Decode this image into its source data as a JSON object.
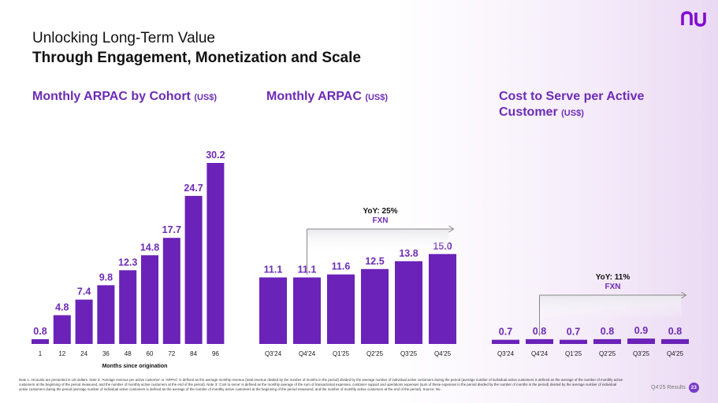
{
  "header": {
    "title_line1": "Unlocking Long-Term Value",
    "title_line2": "Through Engagement, Monetization and Scale"
  },
  "brand": {
    "logo_text": "nu",
    "color": "#820ad1"
  },
  "colors": {
    "bar": "#6a22b8",
    "title": "#6d2bb5",
    "axis_text": "#1b1b1b",
    "arrow": "#888888"
  },
  "charts": {
    "cohort": {
      "title": "Monthly ARPAC by Cohort",
      "unit": "(US$)"
    },
    "arpac": {
      "title": "Monthly ARPAC",
      "unit": "(US$)"
    },
    "cost": {
      "title_line1": "Cost to Serve per Active",
      "title_line2": "Customer",
      "unit": "(US$)"
    }
  },
  "chart_data": [
    {
      "type": "bar",
      "title": "Monthly ARPAC by Cohort (US$)",
      "xlabel": "Months since origination",
      "categories": [
        "1",
        "12",
        "24",
        "36",
        "48",
        "60",
        "72",
        "84",
        "96"
      ],
      "values": [
        0.8,
        4.8,
        7.4,
        9.8,
        12.3,
        14.8,
        17.7,
        24.7,
        30.2
      ],
      "ylim": [
        0,
        30.2
      ]
    },
    {
      "type": "bar",
      "title": "Monthly ARPAC (US$)",
      "categories": [
        "Q3'24",
        "Q4'24",
        "Q1'25",
        "Q2'25",
        "Q3'25",
        "Q4'25"
      ],
      "values": [
        11.1,
        11.1,
        11.6,
        12.5,
        13.8,
        15.0
      ],
      "ylim": [
        0,
        30.2
      ],
      "annotation": {
        "line1": "YoY: 25%",
        "line2": "FXN",
        "from": "Q4'24",
        "to": "Q4'25"
      }
    },
    {
      "type": "bar",
      "title": "Cost to Serve per Active Customer (US$)",
      "categories": [
        "Q3'24",
        "Q4'24",
        "Q1'25",
        "Q2'25",
        "Q3'25",
        "Q4'25"
      ],
      "values": [
        0.7,
        0.8,
        0.7,
        0.8,
        0.9,
        0.8
      ],
      "ylim": [
        0,
        30.2
      ],
      "annotation": {
        "line1": "YoY: 11%",
        "line2": "FXN",
        "from": "Q4'24",
        "to": "Q4'25"
      }
    }
  ],
  "footnote": "Note 1: Amounts are presented in US dollars. Note 2: 'Average revenue per active customer' or 'ARPAC' is defined as the average monthly revenue (total revenue divided by the number of months in the period) divided by the average number of individual active customers during the period (average number of individual active customers is defined as the average of the number of monthly active customers at the beginning of the period measured, and the number of monthly active customers at the end of the period). Note 3: 'Cost to serve' is defined as the monthly average of the sum of transactional expenses, customer support and operations expenses (sum of these expenses in the period divided by the number of months in the period) divided by the average number of individual active customers during the period (average number of individual active customers is defined as the average of the number of monthly active customers at the beginning of the period measured, and the number of monthly active customers at the end of the period). Source: Nu.",
  "footer": {
    "text": "Q4'25 Results",
    "page": "23"
  }
}
